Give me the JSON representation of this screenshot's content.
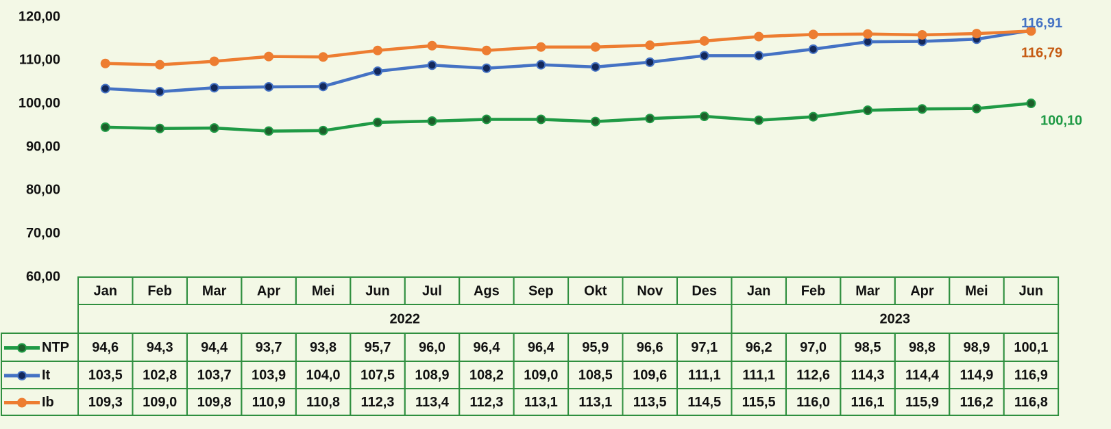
{
  "chart_data": {
    "type": "line",
    "categories": [
      "Jan",
      "Feb",
      "Mar",
      "Apr",
      "Mei",
      "Jun",
      "Jul",
      "Ags",
      "Sep",
      "Okt",
      "Nov",
      "Des",
      "Jan",
      "Feb",
      "Mar",
      "Apr",
      "Mei",
      "Jun"
    ],
    "x_groups": [
      {
        "label": "2022",
        "count": 12
      },
      {
        "label": "2023",
        "count": 6
      }
    ],
    "ylim": [
      60,
      120
    ],
    "yticks": [
      {
        "value": 60,
        "label": "60,00"
      },
      {
        "value": 70,
        "label": "70,00"
      },
      {
        "value": 80,
        "label": "80,00"
      },
      {
        "value": 90,
        "label": "90,00"
      },
      {
        "value": 100,
        "label": "100,00"
      },
      {
        "value": 110,
        "label": "110,00"
      },
      {
        "value": 120,
        "label": "120,00"
      }
    ],
    "grid": false,
    "series": [
      {
        "name": "NTP",
        "color": "#1f9a45",
        "marker_color": "#1d5e2a",
        "label_color": "#1f9a45",
        "values": [
          94.6,
          94.3,
          94.4,
          93.7,
          93.8,
          95.7,
          96.0,
          96.4,
          96.4,
          95.9,
          96.6,
          97.1,
          96.2,
          97.0,
          98.5,
          98.8,
          98.9,
          100.1
        ],
        "value_labels": [
          "94,6",
          "94,3",
          "94,4",
          "93,7",
          "93,8",
          "95,7",
          "96,0",
          "96,4",
          "96,4",
          "95,9",
          "96,6",
          "97,1",
          "96,2",
          "97,0",
          "98,5",
          "98,8",
          "98,9",
          "100,1"
        ],
        "end_label": "100,10"
      },
      {
        "name": "It",
        "color": "#4472c4",
        "marker_color": "#13285a",
        "label_color": "#4472c4",
        "values": [
          103.5,
          102.8,
          103.7,
          103.9,
          104.0,
          107.5,
          108.9,
          108.2,
          109.0,
          108.5,
          109.6,
          111.1,
          111.1,
          112.6,
          114.3,
          114.4,
          114.9,
          116.91
        ],
        "value_labels": [
          "103,5",
          "102,8",
          "103,7",
          "103,9",
          "104,0",
          "107,5",
          "108,9",
          "108,2",
          "109,0",
          "108,5",
          "109,6",
          "111,1",
          "111,1",
          "112,6",
          "114,3",
          "114,4",
          "114,9",
          "116,9"
        ],
        "end_label": "116,91"
      },
      {
        "name": "Ib",
        "color": "#ed7d31",
        "marker_color": "#ed7d31",
        "label_color": "#c55a11",
        "values": [
          109.3,
          109.0,
          109.8,
          110.9,
          110.8,
          112.3,
          113.4,
          112.3,
          113.1,
          113.1,
          113.5,
          114.5,
          115.5,
          116.0,
          116.1,
          115.9,
          116.2,
          116.79
        ],
        "value_labels": [
          "109,3",
          "109,0",
          "109,8",
          "110,9",
          "110,8",
          "112,3",
          "113,4",
          "112,3",
          "113,1",
          "113,1",
          "113,5",
          "114,5",
          "115,5",
          "116,0",
          "116,1",
          "115,9",
          "116,2",
          "116,8"
        ],
        "end_label": "116,79"
      }
    ]
  }
}
